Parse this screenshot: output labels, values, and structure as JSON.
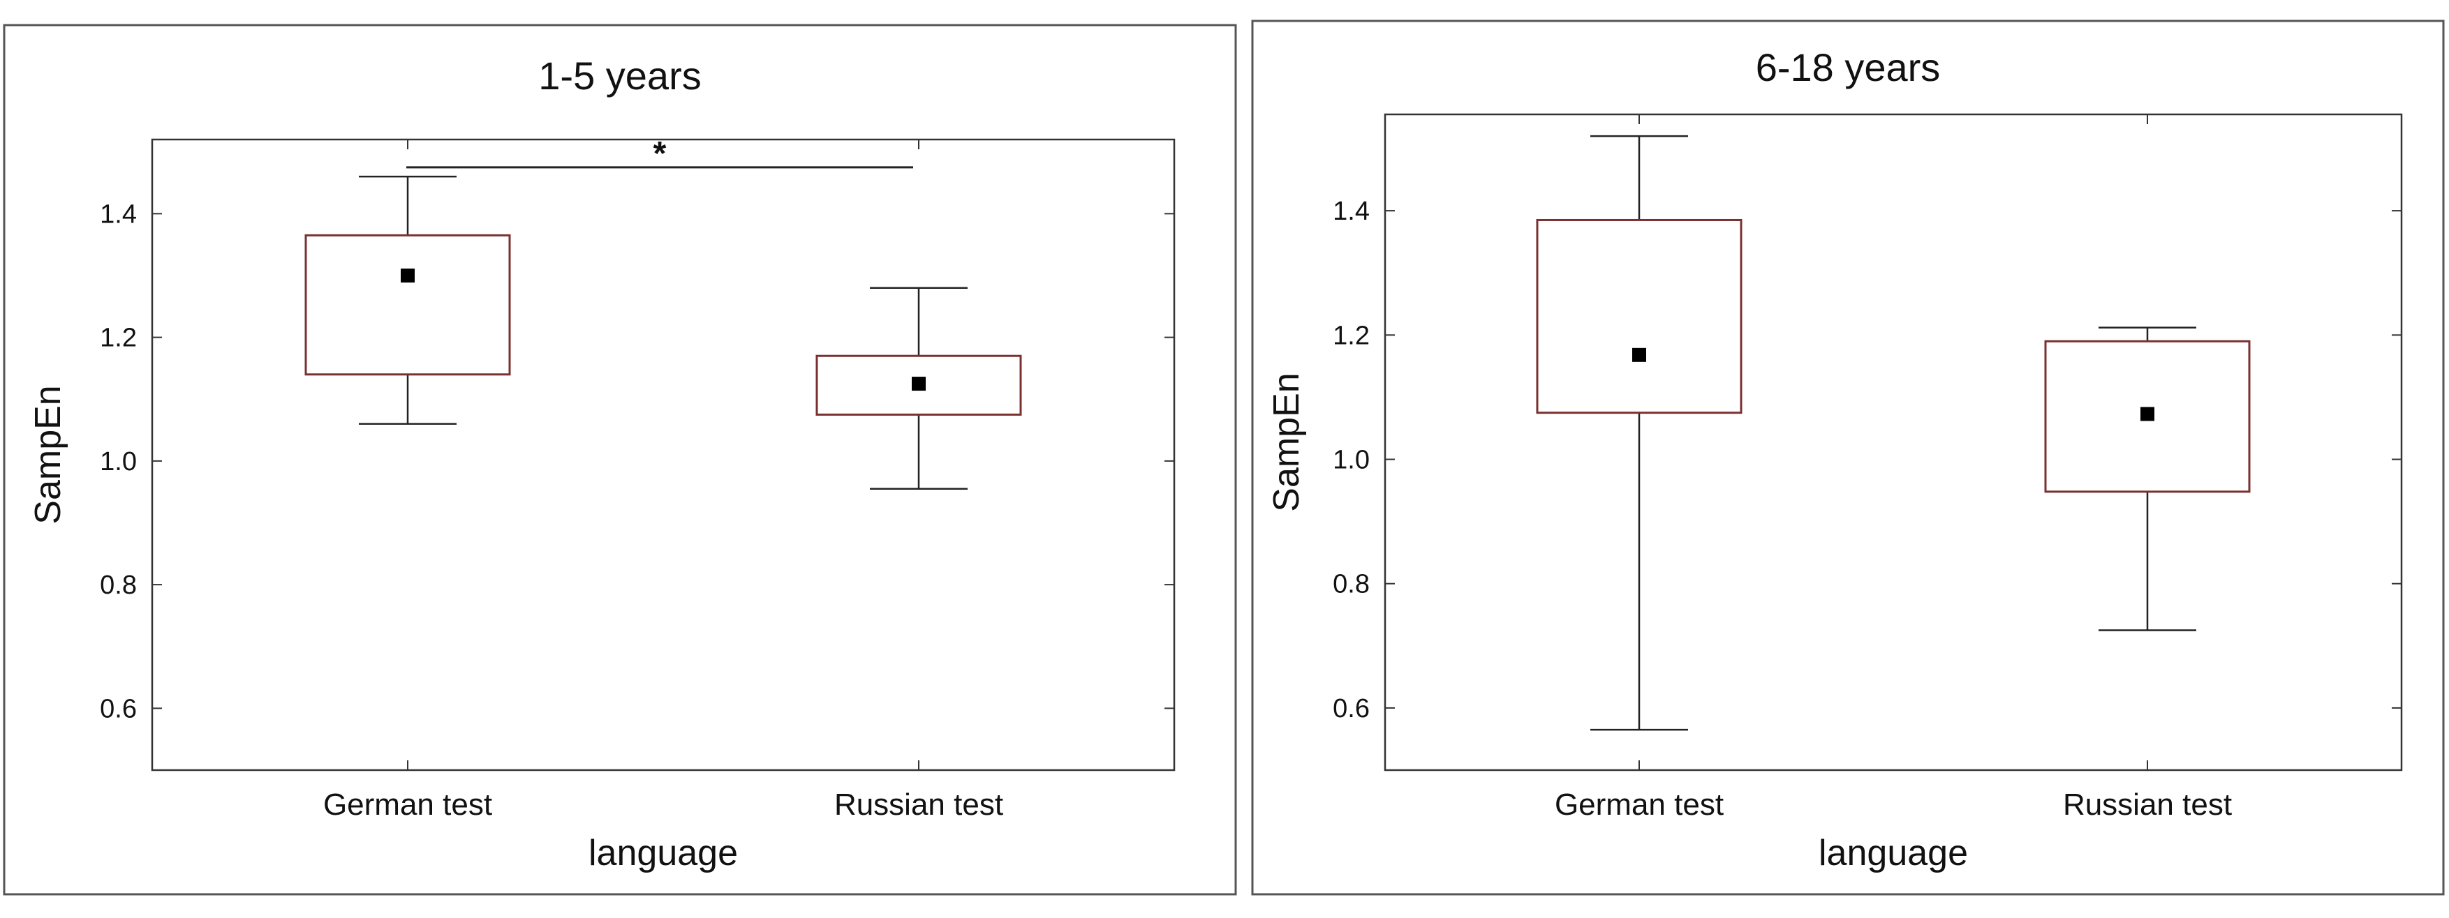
{
  "chart_data": [
    {
      "type": "boxplot",
      "title": "1-5 years",
      "xlabel": "language",
      "ylabel": "SampEn",
      "ylim": [
        0.5,
        1.52
      ],
      "yticks": [
        0.6,
        0.8,
        1.0,
        1.2,
        1.4
      ],
      "ytick_labels": [
        "0.6",
        "0.8",
        "1.0",
        "1.2",
        "1.4"
      ],
      "categories": [
        "German test",
        "Russian test"
      ],
      "boxes": [
        {
          "category": "German test",
          "whisker_low": 1.06,
          "q1": 1.14,
          "mean": 1.3,
          "q3": 1.365,
          "whisker_high": 1.46
        },
        {
          "category": "Russian test",
          "whisker_low": 0.955,
          "q1": 1.075,
          "mean": 1.125,
          "q3": 1.17,
          "whisker_high": 1.28
        }
      ],
      "significance": {
        "between": [
          "German test",
          "Russian test"
        ],
        "y": 1.475,
        "label": "*"
      },
      "colors": {
        "box": "#7b3030",
        "whisker": "#222222",
        "mean": "#000000",
        "frame": "#333333"
      }
    },
    {
      "type": "boxplot",
      "title": "6-18 years",
      "xlabel": "language",
      "ylabel": "SampEn",
      "ylim": [
        0.5,
        1.555
      ],
      "yticks": [
        0.6,
        0.8,
        1.0,
        1.2,
        1.4
      ],
      "ytick_labels": [
        "0.6",
        "0.8",
        "1.0",
        "1.2",
        "1.4"
      ],
      "categories": [
        "German test",
        "Russian test"
      ],
      "boxes": [
        {
          "category": "German test",
          "whisker_low": 0.565,
          "q1": 1.075,
          "mean": 1.168,
          "q3": 1.385,
          "whisker_high": 1.52
        },
        {
          "category": "Russian test",
          "whisker_low": 0.725,
          "q1": 0.948,
          "mean": 1.073,
          "q3": 1.19,
          "whisker_high": 1.212
        }
      ],
      "colors": {
        "box": "#7b3030",
        "whisker": "#222222",
        "mean": "#000000",
        "frame": "#333333"
      }
    }
  ]
}
